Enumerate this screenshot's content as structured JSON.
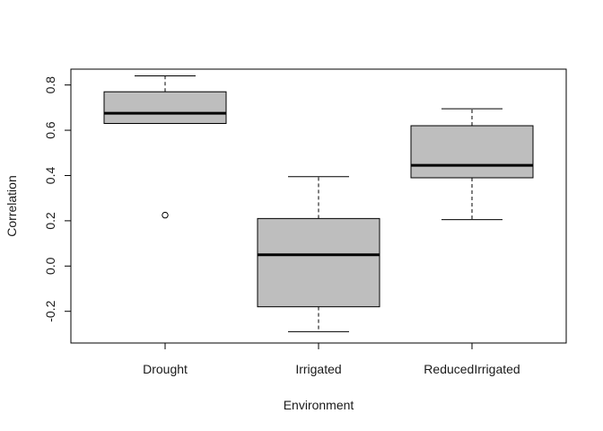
{
  "chart_data": {
    "type": "boxplot",
    "xlabel": "Environment",
    "ylabel": "Correlation",
    "ylim": [
      -0.34,
      0.87
    ],
    "yticks": [
      -0.2,
      0.0,
      0.2,
      0.4,
      0.6,
      0.8
    ],
    "ytick_labels": [
      "-0.2",
      "0.0",
      "0.2",
      "0.4",
      "0.6",
      "0.8"
    ],
    "grid": false,
    "box_color": "#bebebe",
    "categories": [
      "Drought",
      "Irrigated",
      "ReducedIrrigated"
    ],
    "boxes": [
      {
        "category": "Drought",
        "whisker_low": 0.63,
        "q1": 0.63,
        "median": 0.675,
        "q3": 0.77,
        "whisker_high": 0.84,
        "outliers": [
          0.225
        ]
      },
      {
        "category": "Irrigated",
        "whisker_low": -0.29,
        "q1": -0.18,
        "median": 0.05,
        "q3": 0.21,
        "whisker_high": 0.395,
        "outliers": []
      },
      {
        "category": "ReducedIrrigated",
        "whisker_low": 0.205,
        "q1": 0.39,
        "median": 0.445,
        "q3": 0.62,
        "whisker_high": 0.695,
        "outliers": []
      }
    ]
  }
}
